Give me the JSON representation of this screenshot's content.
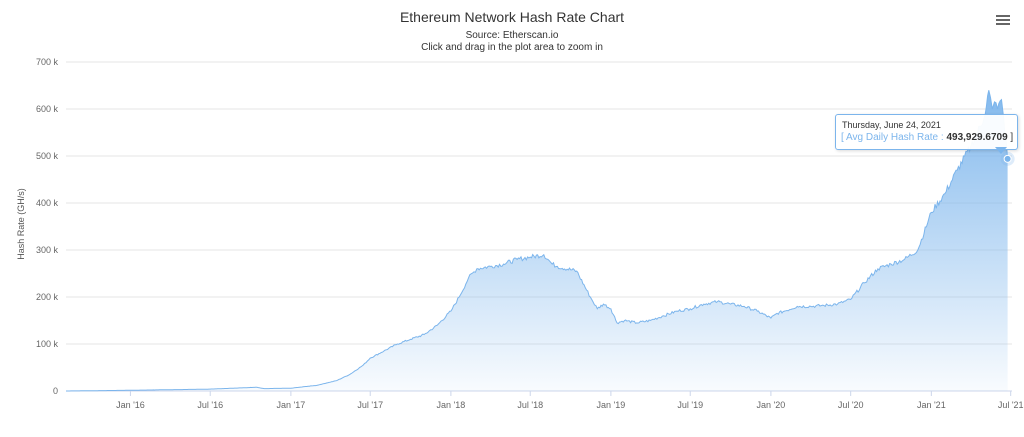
{
  "chart_data": {
    "type": "area",
    "title": "Ethereum Network Hash Rate Chart",
    "subtitle_source": "Source: Etherscan.io",
    "subtitle_hint": "Click and drag in the plot area to zoom in",
    "ylabel": "Hash Rate (GH/s)",
    "xlabel": "",
    "ylim": [
      0,
      700000
    ],
    "y_ticks": [
      "0",
      "100 k",
      "200 k",
      "300 k",
      "400 k",
      "500 k",
      "600 k",
      "700 k"
    ],
    "x_ticks": [
      "Jan '16",
      "Jul '16",
      "Jan '17",
      "Jul '17",
      "Jan '18",
      "Jul '18",
      "Jan '19",
      "Jul '19",
      "Jan '20",
      "Jul '20",
      "Jan '21",
      "Jul '21"
    ],
    "grid": true,
    "legend": "none",
    "color": "#7cb5ec",
    "series": [
      {
        "name": "Avg Daily Hash Rate",
        "x": [
          "2015-08-07",
          "2016-01-01",
          "2016-07-01",
          "2016-10-15",
          "2016-11-01",
          "2017-01-01",
          "2017-03-01",
          "2017-04-15",
          "2017-05-15",
          "2017-06-15",
          "2017-07-01",
          "2017-08-01",
          "2017-09-01",
          "2017-10-01",
          "2017-11-01",
          "2017-12-01",
          "2018-01-01",
          "2018-01-20",
          "2018-02-10",
          "2018-03-01",
          "2018-04-01",
          "2018-05-01",
          "2018-06-01",
          "2018-07-01",
          "2018-08-01",
          "2018-08-20",
          "2018-09-01",
          "2018-10-15",
          "2018-11-15",
          "2018-12-01",
          "2018-12-15",
          "2019-01-01",
          "2019-01-15",
          "2019-02-01",
          "2019-03-01",
          "2019-04-01",
          "2019-05-01",
          "2019-06-01",
          "2019-07-01",
          "2019-08-01",
          "2019-09-01",
          "2019-10-01",
          "2019-11-01",
          "2019-12-01",
          "2020-01-01",
          "2020-01-15",
          "2020-02-01",
          "2020-03-01",
          "2020-04-01",
          "2020-05-01",
          "2020-06-01",
          "2020-07-01",
          "2020-08-01",
          "2020-09-01",
          "2020-10-01",
          "2020-11-01",
          "2020-12-01",
          "2021-01-01",
          "2021-02-01",
          "2021-03-01",
          "2021-04-01",
          "2021-05-01",
          "2021-05-12",
          "2021-05-20",
          "2021-05-25",
          "2021-06-01",
          "2021-06-10",
          "2021-06-15",
          "2021-06-24"
        ],
        "values": [
          0,
          1500,
          4000,
          8000,
          5000,
          6000,
          12000,
          22000,
          35000,
          55000,
          70000,
          85000,
          100000,
          110000,
          120000,
          140000,
          170000,
          200000,
          240000,
          260000,
          265000,
          270000,
          280000,
          285000,
          290000,
          270000,
          265000,
          255000,
          200000,
          175000,
          185000,
          175000,
          145000,
          150000,
          145000,
          150000,
          160000,
          170000,
          175000,
          185000,
          190000,
          185000,
          180000,
          170000,
          155000,
          165000,
          170000,
          180000,
          180000,
          182000,
          185000,
          195000,
          230000,
          260000,
          270000,
          280000,
          300000,
          380000,
          420000,
          470000,
          520000,
          580000,
          640000,
          600000,
          615000,
          600000,
          620000,
          580000,
          493929.6709
        ]
      }
    ],
    "tooltip": {
      "date": "Thursday, June 24, 2021",
      "open_bracket": "[",
      "label": "Avg Daily Hash Rate",
      "separator": ":",
      "value": "493,929.6709",
      "close_bracket": "]"
    }
  },
  "menu": {
    "icon": "hamburger-menu-icon"
  }
}
